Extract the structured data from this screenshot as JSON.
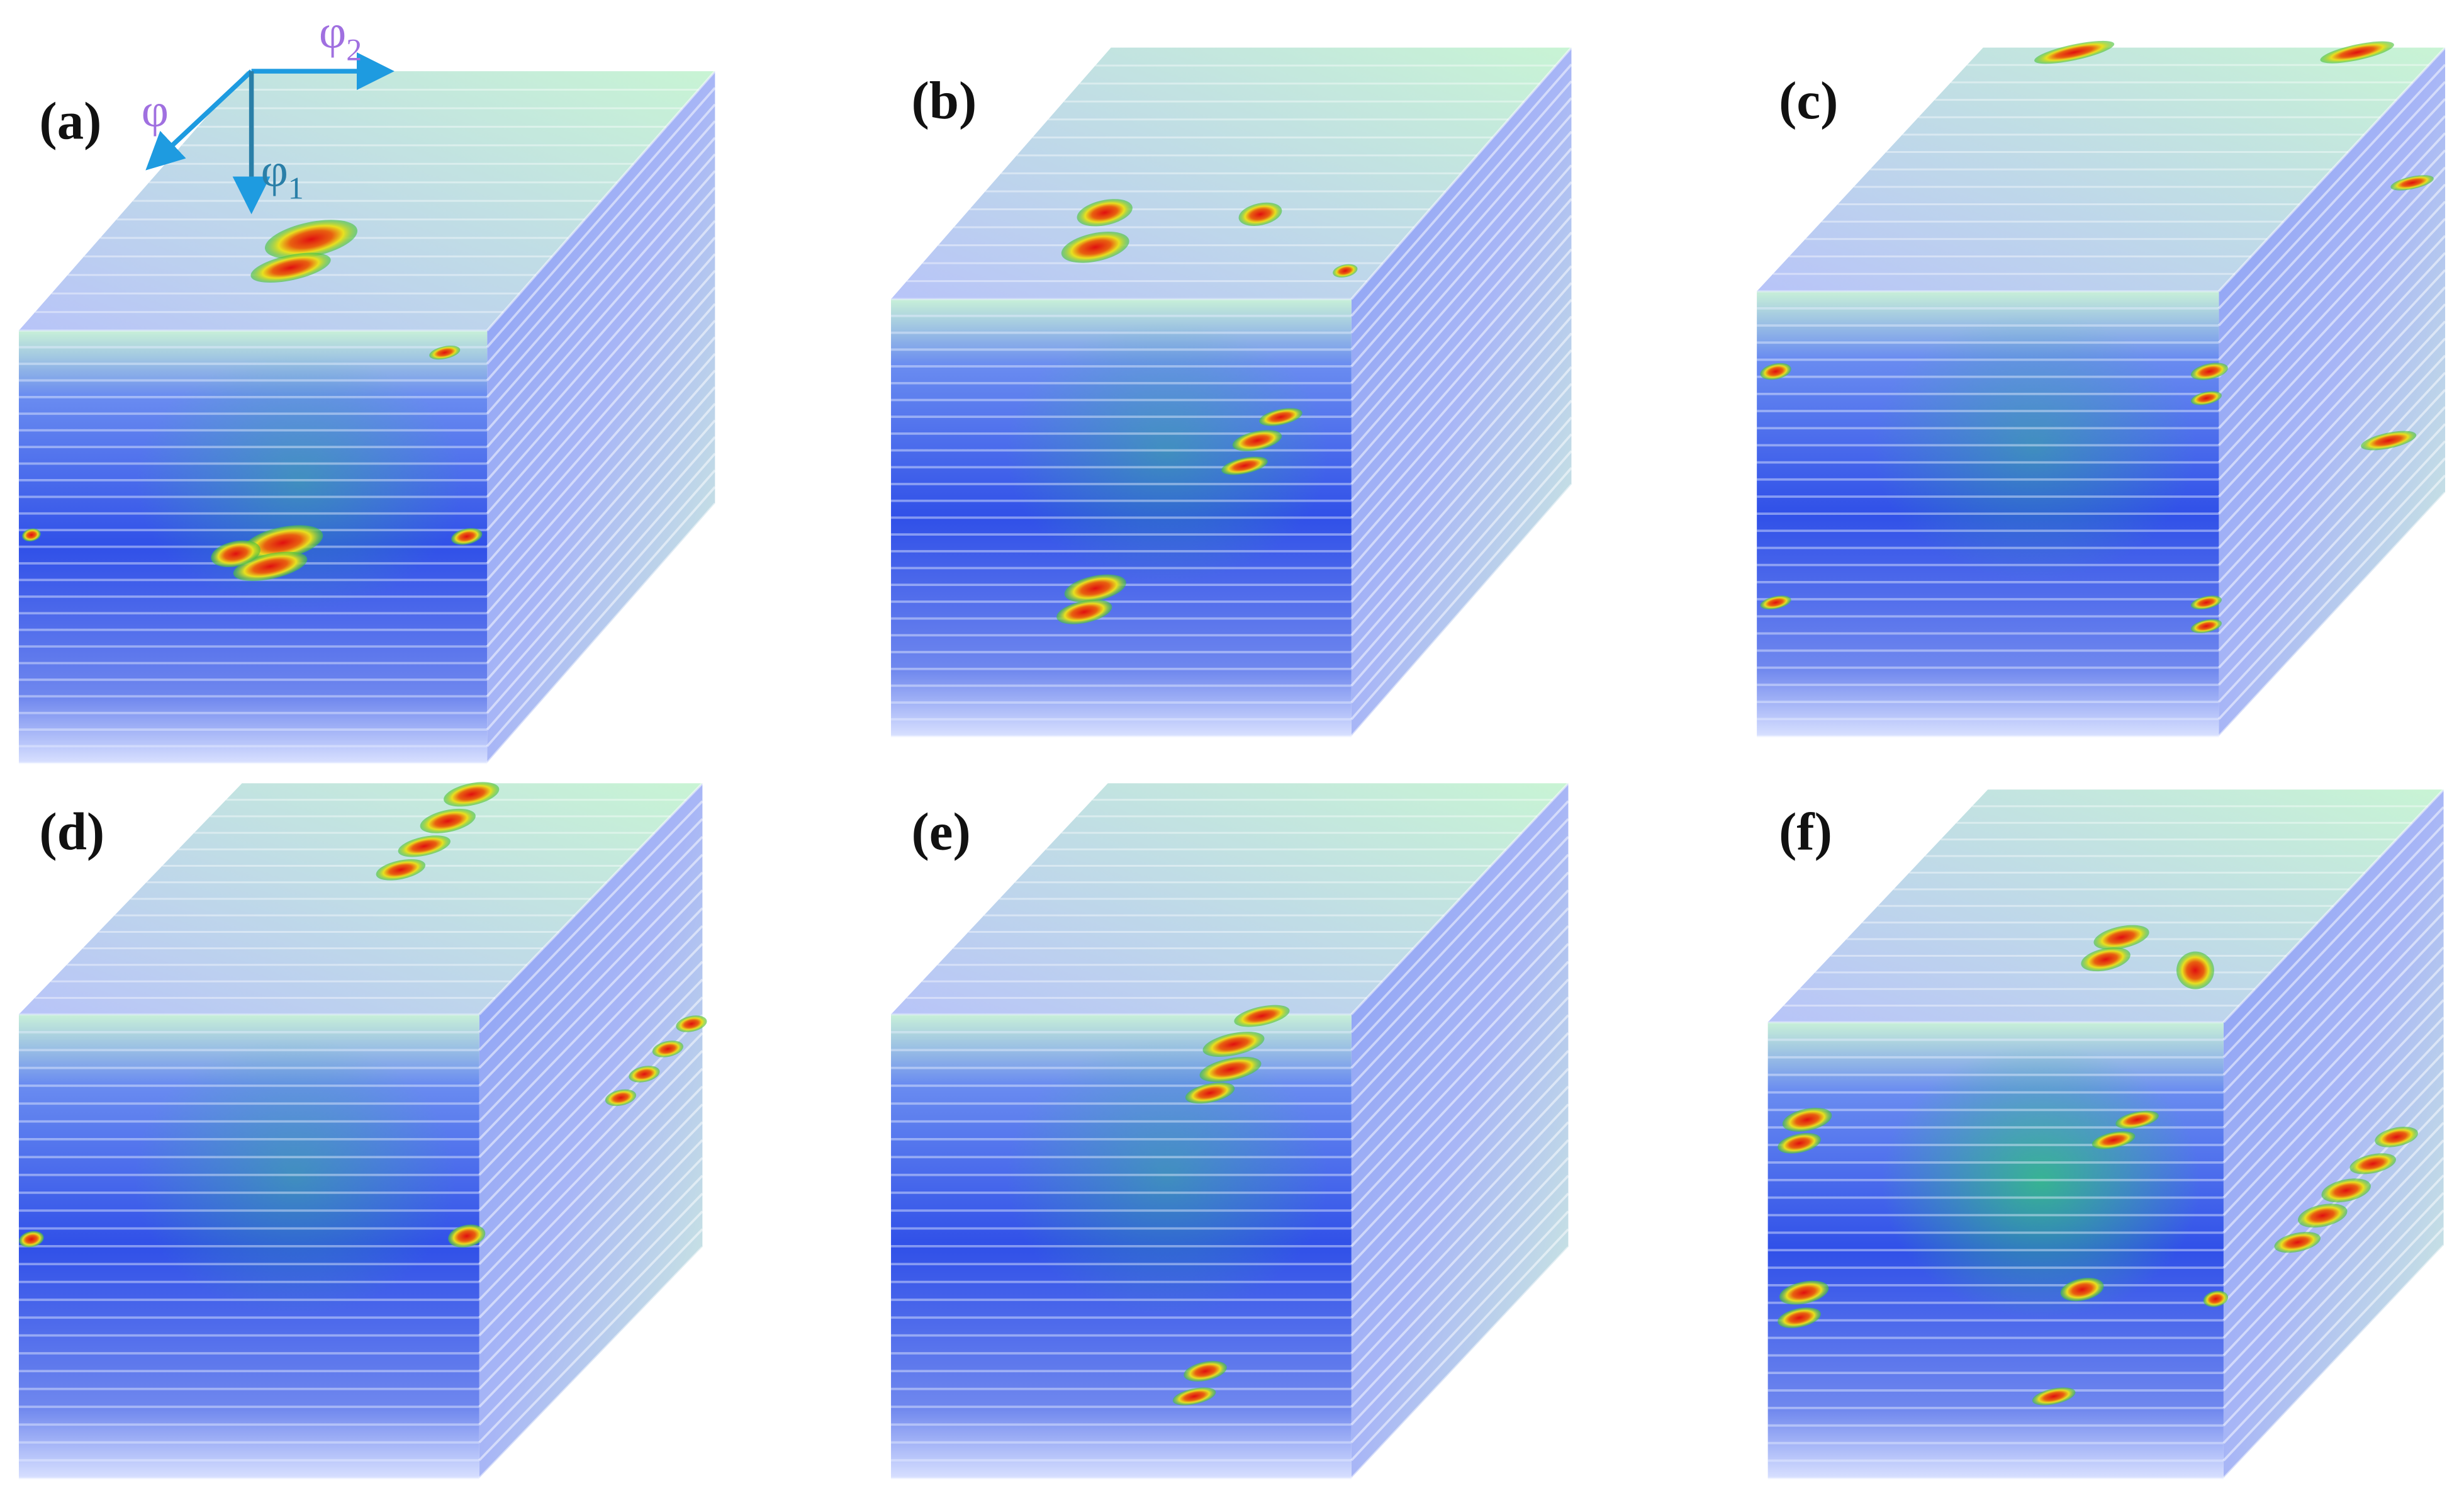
{
  "panels": [
    {
      "label": "(a)"
    },
    {
      "label": "(b)"
    },
    {
      "label": "(c)"
    },
    {
      "label": "(d)"
    },
    {
      "label": "(e)"
    },
    {
      "label": "(f)"
    }
  ],
  "axes": {
    "phi": "φ",
    "phi2": {
      "symbol": "φ",
      "subscript": "2"
    },
    "phi1": {
      "symbol": "φ",
      "subscript": "1"
    }
  }
}
